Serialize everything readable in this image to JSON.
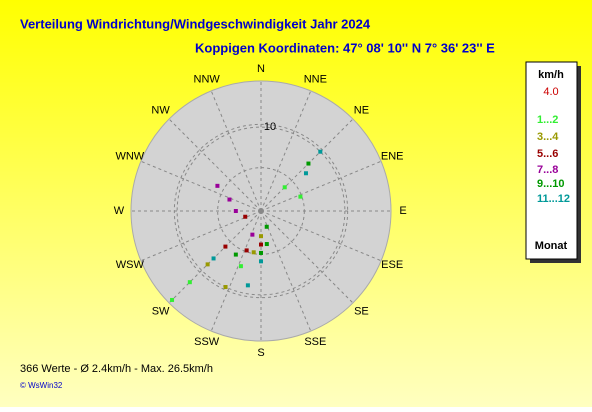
{
  "chart_data": {
    "type": "polar-scatter",
    "title": "Verteilung Windrichtung/Windgeschwindigkeit  Jahr 2024",
    "subtitle": "Koppigen  Koordinaten: 47° 08' 10'' N  7° 36' 23'' E",
    "categories": [
      "N",
      "NNE",
      "NE",
      "ENE",
      "E",
      "ESE",
      "SE",
      "SSE",
      "S",
      "SSW",
      "SW",
      "WSW",
      "W",
      "WNW",
      "NW",
      "NNW"
    ],
    "ylim": [
      0,
      15.5
    ],
    "yticks": [
      10
    ],
    "legend_title": "km/h",
    "legend_value": "4.0",
    "legend_footer": "Monat",
    "series": [
      {
        "name": "1...2",
        "color": "#33ee33",
        "x": [
          225,
          225,
          45,
          200,
          70
        ],
        "values": [
          15,
          12,
          4,
          7,
          5
        ]
      },
      {
        "name": "3...4",
        "color": "#999900",
        "x": [
          205,
          225,
          180,
          190
        ],
        "values": [
          10,
          9,
          3,
          5
        ]
      },
      {
        "name": "5...6",
        "color": "#990000",
        "x": [
          225,
          200,
          250,
          180
        ],
        "values": [
          6,
          5,
          2,
          4
        ]
      },
      {
        "name": "7...8",
        "color": "#990099",
        "x": [
          300,
          290,
          270,
          200
        ],
        "values": [
          6,
          4,
          3,
          3
        ]
      },
      {
        "name": "9...10",
        "color": "#009900",
        "x": [
          45,
          180,
          170,
          210,
          160
        ],
        "values": [
          8,
          5,
          4,
          6,
          2
        ]
      },
      {
        "name": "11...12",
        "color": "#009999",
        "x": [
          45,
          50,
          225,
          180,
          190
        ],
        "values": [
          10,
          7,
          8,
          6,
          9
        ]
      }
    ],
    "footer": "366 Werte   -   Ø 2.4km/h  -  Max. 26.5km/h",
    "credit": "© WsWin32"
  }
}
